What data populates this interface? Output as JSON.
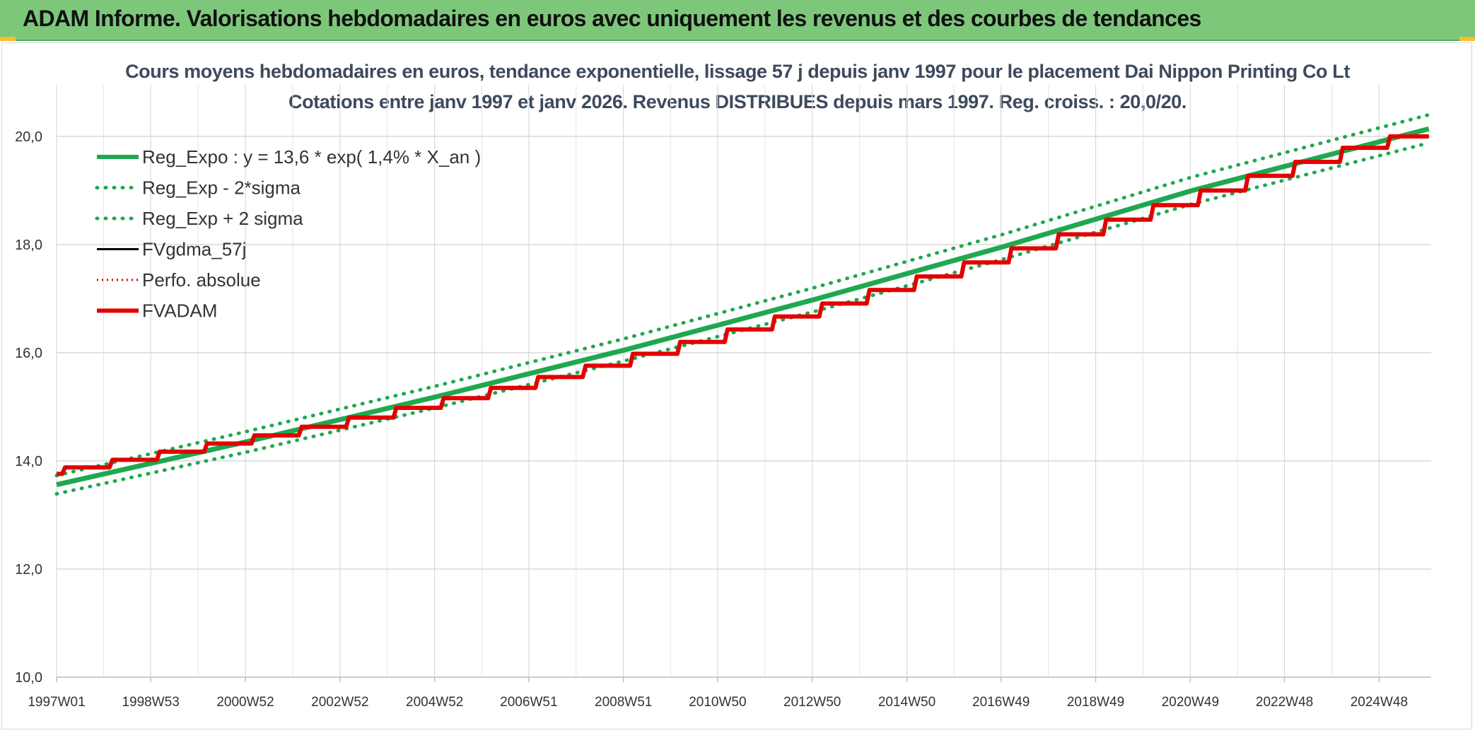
{
  "banner": {
    "title": "ADAM Informe. Valorisations hebdomadaires en euros avec uniquement les revenus et des courbes de tendances",
    "color": "#7dc77b"
  },
  "chart_data": {
    "type": "line",
    "title": "Cours moyens hebdomadaires en euros, tendance exponentielle, lissage 57 j depuis janv 1997 pour le placement Dai Nippon Printing Co Lt",
    "subtitle": "Cotations entre janv 1997 et janv 2026. Revenus DISTRIBUES depuis mars 1997. Reg. croiss. : 20,0/20.",
    "xlabel": "",
    "ylabel": "",
    "x_tick_labels": [
      "1997W01",
      "1998W53",
      "2000W52",
      "2002W52",
      "2004W52",
      "2006W51",
      "2008W51",
      "2010W50",
      "2012W50",
      "2014W50",
      "2016W49",
      "2018W49",
      "2020W49",
      "2022W48",
      "2024W48"
    ],
    "x_tick_years": [
      1997.0,
      1998.99,
      2000.99,
      2002.99,
      2004.99,
      2006.98,
      2008.98,
      2010.97,
      2012.97,
      2014.97,
      2016.96,
      2018.96,
      2020.96,
      2022.95,
      2024.95
    ],
    "x_range": [
      1997.0,
      2026.05
    ],
    "y_ticks": [
      "10,0",
      "12,0",
      "14,0",
      "16,0",
      "18,0",
      "20,0"
    ],
    "ylim": [
      10.0,
      21.3
    ],
    "grid": true,
    "legend_position": "top-left",
    "series": [
      {
        "name": "Reg_Expo : y = 13,6 * exp( 1,4% *  X_an )",
        "style": "solid",
        "color": "#1fa84f",
        "x": [
          1997.0,
          2001.0,
          2005.0,
          2009.0,
          2013.0,
          2017.0,
          2021.0,
          2026.0
        ],
        "values": [
          13.56,
          14.35,
          15.18,
          16.05,
          16.98,
          17.96,
          19.0,
          20.14
        ]
      },
      {
        "name": "Reg_Exp - 2*sigma",
        "style": "dotted",
        "color": "#1fa84f",
        "x": [
          1997.0,
          2001.0,
          2005.0,
          2009.0,
          2013.0,
          2017.0,
          2021.0,
          2026.0
        ],
        "values": [
          13.39,
          14.16,
          14.98,
          15.85,
          16.76,
          17.73,
          18.75,
          19.88
        ]
      },
      {
        "name": "Reg_Exp + 2 sigma",
        "style": "dotted",
        "color": "#1fa84f",
        "x": [
          1997.0,
          2001.0,
          2005.0,
          2009.0,
          2013.0,
          2017.0,
          2021.0,
          2026.0
        ],
        "values": [
          13.73,
          14.54,
          15.38,
          16.26,
          17.2,
          18.19,
          19.25,
          20.4
        ]
      },
      {
        "name": "FVgdma_57j",
        "style": "solid",
        "color": "#000000",
        "x": [
          1997.0,
          1998.0,
          1999.0,
          2000.0,
          2001.0,
          2002.0,
          2003.0,
          2004.0,
          2005.0,
          2006.0,
          2007.0,
          2008.0,
          2009.0,
          2010.0,
          2011.0,
          2012.0,
          2013.0,
          2014.0,
          2015.0,
          2016.0,
          2017.0,
          2018.0,
          2019.0,
          2020.0,
          2021.0,
          2022.0,
          2023.0,
          2024.0,
          2025.0,
          2026.0
        ],
        "values": [
          13.76,
          13.88,
          14.02,
          14.17,
          14.32,
          14.47,
          14.63,
          14.8,
          14.98,
          15.16,
          15.35,
          15.55,
          15.76,
          15.98,
          16.2,
          16.43,
          16.67,
          16.91,
          17.16,
          17.41,
          17.67,
          17.93,
          18.19,
          18.46,
          18.73,
          19.0,
          19.27,
          19.53,
          19.79,
          20.0
        ]
      },
      {
        "name": "Perfo. absolue",
        "style": "dotted",
        "color": "#e00000",
        "x": [
          1997.0,
          1998.0,
          1999.0,
          2000.0,
          2001.0,
          2002.0,
          2003.0,
          2004.0,
          2005.0,
          2006.0,
          2007.0,
          2008.0,
          2009.0,
          2010.0,
          2011.0,
          2012.0,
          2013.0,
          2014.0,
          2015.0,
          2016.0,
          2017.0,
          2018.0,
          2019.0,
          2020.0,
          2021.0,
          2022.0,
          2023.0,
          2024.0,
          2025.0,
          2026.0
        ],
        "values": [
          13.76,
          13.88,
          14.02,
          14.17,
          14.32,
          14.47,
          14.63,
          14.8,
          14.98,
          15.16,
          15.35,
          15.55,
          15.76,
          15.98,
          16.2,
          16.43,
          16.67,
          16.91,
          17.16,
          17.41,
          17.67,
          17.93,
          18.19,
          18.46,
          18.73,
          19.0,
          19.27,
          19.53,
          19.79,
          20.0
        ]
      },
      {
        "name": "FVADAM",
        "style": "solid",
        "color": "#e30000",
        "x": [
          1997.0,
          1998.0,
          1999.0,
          2000.0,
          2001.0,
          2002.0,
          2003.0,
          2004.0,
          2005.0,
          2006.0,
          2007.0,
          2008.0,
          2009.0,
          2010.0,
          2011.0,
          2012.0,
          2013.0,
          2014.0,
          2015.0,
          2016.0,
          2017.0,
          2018.0,
          2019.0,
          2020.0,
          2021.0,
          2022.0,
          2023.0,
          2024.0,
          2025.0,
          2026.0
        ],
        "values": [
          13.76,
          13.88,
          14.02,
          14.17,
          14.32,
          14.47,
          14.63,
          14.8,
          14.98,
          15.16,
          15.35,
          15.55,
          15.76,
          15.98,
          16.2,
          16.43,
          16.67,
          16.91,
          17.16,
          17.41,
          17.67,
          17.93,
          18.19,
          18.46,
          18.73,
          19.0,
          19.27,
          19.53,
          19.79,
          20.0
        ]
      }
    ]
  }
}
